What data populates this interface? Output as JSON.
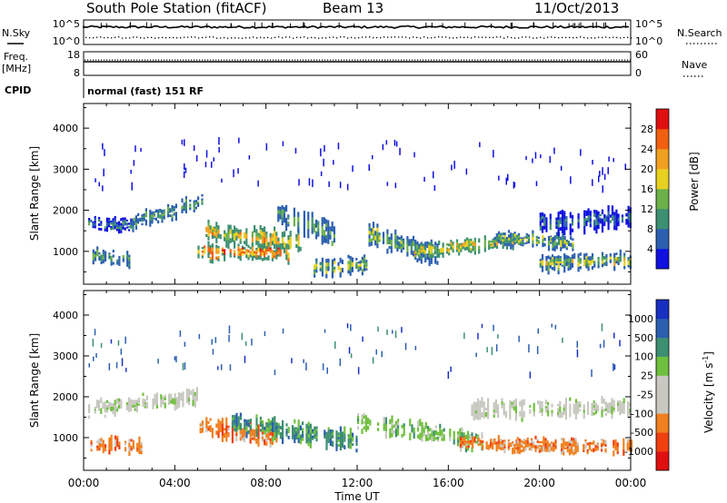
{
  "header": {
    "station": "South Pole Station (fitACF)",
    "beam": "Beam 13",
    "date": "11/Oct/2013"
  },
  "noise_panel": {
    "left_label": "N.Sky",
    "left_ticks": [
      "10^5",
      "10^0"
    ],
    "right_ticks": [
      "10^5",
      "10^0"
    ],
    "right_label": "N.Search"
  },
  "freq_panel": {
    "left_label_1": "Freq.",
    "left_label_2": "[MHz]",
    "left_ticks": [
      "18",
      "8"
    ],
    "right_ticks": [
      "60",
      "0"
    ],
    "right_label": "Nave"
  },
  "cpid": {
    "label": "CPID",
    "value": "normal (fast) 151 RF"
  },
  "colors": {
    "power_scale": [
      "#1010e0",
      "#2c5fb0",
      "#3d8f72",
      "#6bb04a",
      "#e8d020",
      "#f0a020",
      "#f06010",
      "#e01010"
    ],
    "velocity_scale": [
      "#e01010",
      "#f04010",
      "#f08020",
      "#c8c8c0",
      "#c8c8c0",
      "#70c040",
      "#3d8f72",
      "#2c5fb0",
      "#1830c0"
    ]
  },
  "chart_data": [
    {
      "type": "heatmap",
      "name": "power",
      "ylabel": "Slant Range [km]",
      "ylim": [
        200,
        4600
      ],
      "yticks": [
        "1000",
        "2000",
        "3000",
        "4000"
      ],
      "xlim": [
        "00:00",
        "24:00"
      ],
      "colorbar_label": "Power [dB]",
      "colorbar_ticks": [
        "4",
        "8",
        "12",
        "16",
        "20",
        "24",
        "28"
      ],
      "clim": [
        0,
        30
      ],
      "bands": [
        {
          "t0": 0.2,
          "t1": 2.3,
          "r_center": [
            1700,
            1600
          ],
          "r_width": 300,
          "level": 7
        },
        {
          "t0": 0.3,
          "t1": 2.0,
          "r_center": [
            900,
            800
          ],
          "r_width": 350,
          "level": 10
        },
        {
          "t0": 2.0,
          "t1": 5.2,
          "r_center": [
            1700,
            2200
          ],
          "r_width": 350,
          "level": 9
        },
        {
          "t0": 5.0,
          "t1": 9.5,
          "r_center": [
            1500,
            1200
          ],
          "r_width": 500,
          "level": 18
        },
        {
          "t0": 5.0,
          "t1": 9.0,
          "r_center": [
            1000,
            950
          ],
          "r_width": 400,
          "level": 22
        },
        {
          "t0": 8.5,
          "t1": 11.0,
          "r_center": [
            1900,
            1400
          ],
          "r_width": 600,
          "level": 9
        },
        {
          "t0": 10.0,
          "t1": 12.5,
          "r_center": [
            600,
            700
          ],
          "r_width": 400,
          "level": 14
        },
        {
          "t0": 12.5,
          "t1": 15.5,
          "r_center": [
            1400,
            900
          ],
          "r_width": 500,
          "level": 11
        },
        {
          "t0": 14.5,
          "t1": 19.0,
          "r_center": [
            1000,
            1300
          ],
          "r_width": 350,
          "level": 16
        },
        {
          "t0": 18.0,
          "t1": 21.5,
          "r_center": [
            1300,
            1200
          ],
          "r_width": 350,
          "level": 12
        },
        {
          "t0": 20.0,
          "t1": 24.0,
          "r_center": [
            700,
            800
          ],
          "r_width": 400,
          "level": 14
        },
        {
          "t0": 20.0,
          "t1": 24.0,
          "r_center": [
            1700,
            1800
          ],
          "r_width": 500,
          "level": 6
        }
      ]
    },
    {
      "type": "heatmap",
      "name": "velocity",
      "ylabel": "Slant Range [km]",
      "ylim": [
        200,
        4600
      ],
      "yticks": [
        "1000",
        "2000",
        "3000",
        "4000"
      ],
      "xlim": [
        "00:00",
        "24:00"
      ],
      "xticks": [
        "00:00",
        "04:00",
        "08:00",
        "12:00",
        "16:00",
        "20:00",
        "00:00"
      ],
      "xlabel": "Time UT",
      "colorbar_label": "Velocity [m s^-1]",
      "colorbar_ticks": [
        "1000",
        "500",
        "100",
        "25",
        "-25",
        "-100",
        "-500",
        "-1000"
      ],
      "bands": [
        {
          "t0": 0.2,
          "t1": 5.0,
          "r_center": [
            1700,
            2000
          ],
          "r_width": 350,
          "class": 4
        },
        {
          "t0": 0.3,
          "t1": 2.5,
          "r_center": [
            850,
            800
          ],
          "r_width": 350,
          "class": 2
        },
        {
          "t0": 5.0,
          "t1": 8.5,
          "r_center": [
            1300,
            1000
          ],
          "r_width": 500,
          "class": 2
        },
        {
          "t0": 6.5,
          "t1": 12.0,
          "r_center": [
            1400,
            900
          ],
          "r_width": 500,
          "class": 6
        },
        {
          "t0": 12.0,
          "t1": 17.5,
          "r_center": [
            1400,
            900
          ],
          "r_width": 450,
          "class": 5
        },
        {
          "t0": 16.5,
          "t1": 19.0,
          "r_center": [
            900,
            800
          ],
          "r_width": 300,
          "class": 2
        },
        {
          "t0": 19.0,
          "t1": 24.0,
          "r_center": [
            800,
            800
          ],
          "r_width": 350,
          "class": 2
        },
        {
          "t0": 17.0,
          "t1": 24.0,
          "r_center": [
            1700,
            1750
          ],
          "r_width": 450,
          "class": 4
        }
      ]
    }
  ]
}
